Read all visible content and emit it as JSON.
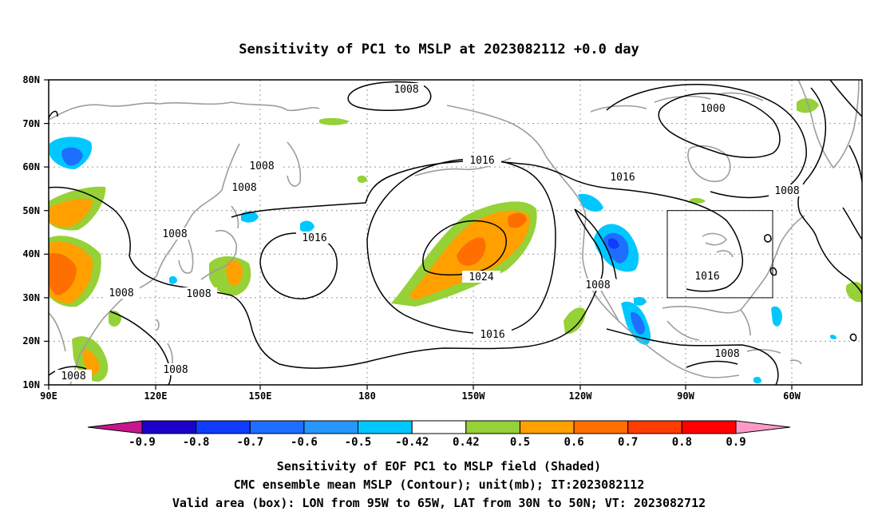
{
  "title": "Sensitivity of PC1 to MSLP at 2023082112 +0.0 day",
  "lat_ticks": [
    "80N",
    "70N",
    "60N",
    "50N",
    "40N",
    "30N",
    "20N",
    "10N"
  ],
  "lon_ticks": [
    "90E",
    "120E",
    "150E",
    "180",
    "150W",
    "120W",
    "90W",
    "60W"
  ],
  "map_extent": {
    "lon_min": 90,
    "lon_max": 310,
    "lat_min": 10,
    "lat_max": 80
  },
  "contour_labels": [
    "1008",
    "1008",
    "1008",
    "1008",
    "1008",
    "1016",
    "1024",
    "1016",
    "1016",
    "1000",
    "1016",
    "1008",
    "1008",
    "1008",
    "1008",
    "1008",
    "1016"
  ],
  "valid_box": {
    "lon_from": "95W",
    "lon_to": "65W",
    "lat_from": "30N",
    "lat_to": "50N",
    "lon_min": 265,
    "lon_max": 295,
    "lat_min": 30,
    "lat_max": 50
  },
  "colorbar": {
    "ticks": [
      "-0.9",
      "-0.8",
      "-0.7",
      "-0.6",
      "-0.5",
      "-0.42",
      "0.42",
      "0.5",
      "0.6",
      "0.7",
      "0.8",
      "0.9"
    ],
    "colors": [
      "#1a00c8",
      "#0f3cff",
      "#1e6eff",
      "#2896ff",
      "#00c8ff",
      "#ffffff",
      "#95d137",
      "#ffa000",
      "#ff6e00",
      "#ff3c00",
      "#ff0000"
    ],
    "low_extend_color": "#c8168c",
    "high_extend_color": "#ff9ac8"
  },
  "caption": [
    "Sensitivity of EOF PC1 to MSLP field (Shaded)",
    "CMC ensemble mean MSLP (Contour); unit(mb); IT:2023082112",
    "Valid area (box): LON from 95W to 65W, LAT from 30N to 50N; VT: 2023082712"
  ]
}
